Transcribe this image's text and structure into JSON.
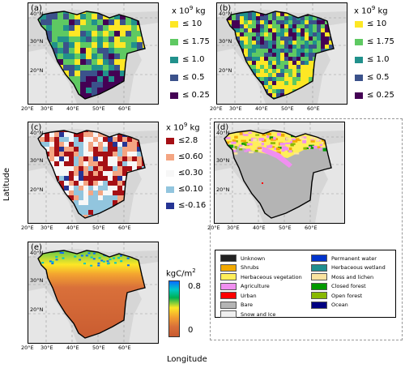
{
  "chart_data": [
    {
      "type": "heatmap",
      "panel": "(a)",
      "colorbar_title": "x 10",
      "colorbar_exp": "9",
      "colorbar_unit": " kg",
      "legend": [
        {
          "label": "≤ 10",
          "color": "#fde725"
        },
        {
          "label": "≤ 1.75",
          "color": "#5ec962"
        },
        {
          "label": "≤ 1.0",
          "color": "#21918c"
        },
        {
          "label": "≤ 0.5",
          "color": "#3b528b"
        },
        {
          "label": "≤ 0.25",
          "color": "#440154"
        }
      ]
    },
    {
      "type": "heatmap",
      "panel": "(b)",
      "colorbar_title": "x 10",
      "colorbar_exp": "9",
      "colorbar_unit": " kg",
      "legend": [
        {
          "label": "≤ 10",
          "color": "#fde725"
        },
        {
          "label": "≤ 1.75",
          "color": "#5ec962"
        },
        {
          "label": "≤ 1.0",
          "color": "#21918c"
        },
        {
          "label": "≤ 0.5",
          "color": "#3b528b"
        },
        {
          "label": "≤ 0.25",
          "color": "#440154"
        }
      ]
    },
    {
      "type": "heatmap",
      "panel": "(c)",
      "colorbar_title": "x 10",
      "colorbar_exp": "9",
      "colorbar_unit": " kg",
      "legend": [
        {
          "label": "≤2.8",
          "color": "#a50f15"
        },
        {
          "label": "≤0.60",
          "color": "#f4a582"
        },
        {
          "label": "≤0.30",
          "color": "#f7f7f7"
        },
        {
          "label": "≤0.10",
          "color": "#92c5de"
        },
        {
          "label": "≤-0.16",
          "color": "#253494"
        }
      ]
    },
    {
      "type": "heatmap",
      "panel": "(d)",
      "landcover_legend": [
        {
          "label": "Unknown",
          "color": "#222222"
        },
        {
          "label": "Permanent water",
          "color": "#0033cc"
        },
        {
          "label": "Shrubs",
          "color": "#f2a900"
        },
        {
          "label": "Herbaceous wetland",
          "color": "#1f8f8f"
        },
        {
          "label": "Herbaceous vegetation",
          "color": "#ffef5a"
        },
        {
          "label": "Moss and lichen",
          "color": "#fbe3a0"
        },
        {
          "label": "Agriculture",
          "color": "#f08ff0"
        },
        {
          "label": "Closed forest",
          "color": "#009900"
        },
        {
          "label": "Urban",
          "color": "#ff0000"
        },
        {
          "label": "Open forest",
          "color": "#88b800"
        },
        {
          "label": "Bare",
          "color": "#b4b4b4"
        },
        {
          "label": "Ocean",
          "color": "#000080"
        },
        {
          "label": "Snow and Ice",
          "color": "#f0f0f0"
        }
      ]
    },
    {
      "type": "heatmap",
      "panel": "(e)",
      "colorbar_title": "kgC/m",
      "colorbar_exp": "2",
      "colorbar_ticks": [
        "0.8",
        "0"
      ],
      "colorbar_range": [
        0,
        0.8
      ]
    }
  ],
  "axes": {
    "x_ticks": [
      "20°E",
      "30°E",
      "40°E",
      "50°E",
      "60°E"
    ],
    "y_ticks": [
      "40°N",
      "30°N",
      "20°N"
    ],
    "xlabel": "Longitude",
    "ylabel": "Latitude"
  }
}
